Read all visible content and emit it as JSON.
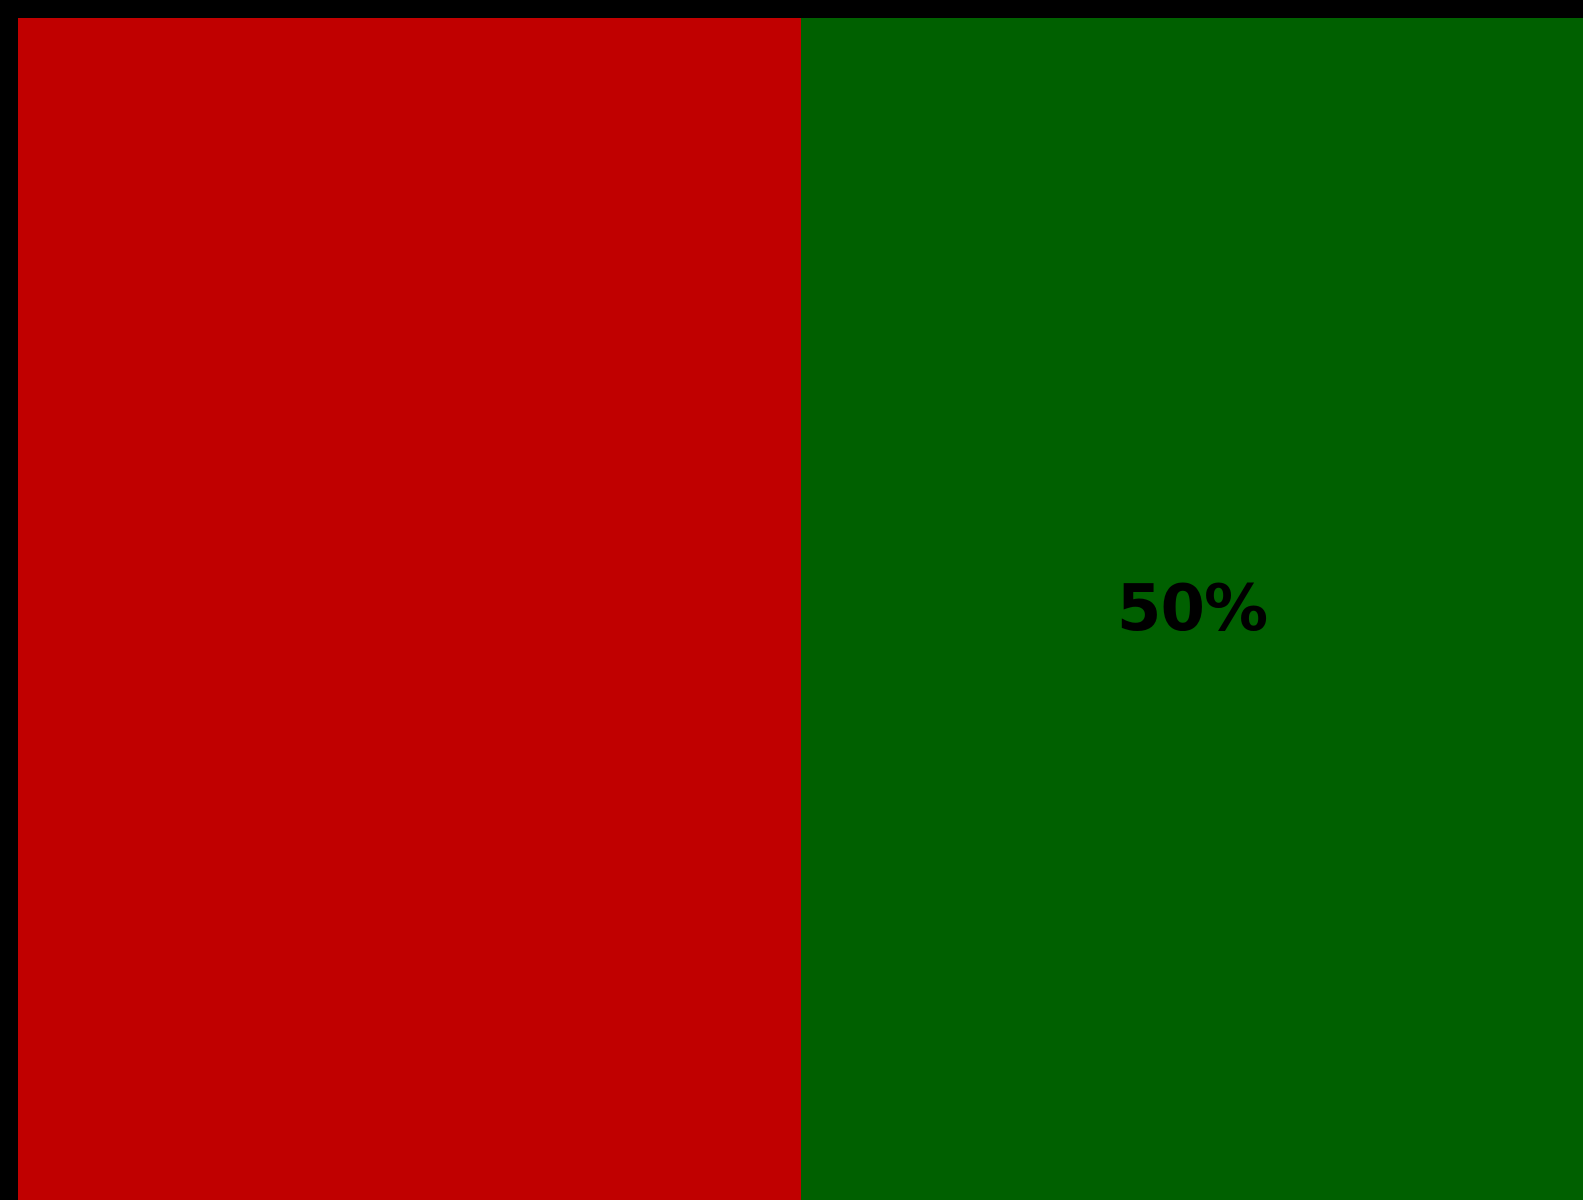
{
  "chart_data": {
    "type": "bar",
    "orientation": "horizontal-stacked-100",
    "series": [
      {
        "value": 50,
        "color": "#c00000",
        "label": ""
      },
      {
        "value": 50,
        "color": "#006000",
        "label": "50%"
      }
    ],
    "total": 100,
    "grid": false,
    "legend": "none"
  },
  "colors": {
    "background": "#000000",
    "border": "#000000",
    "label": "#000000"
  }
}
